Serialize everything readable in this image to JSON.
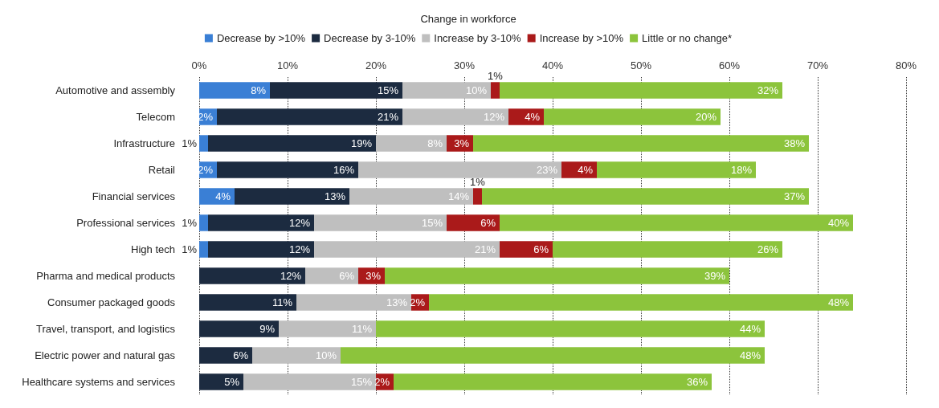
{
  "chart_data": {
    "type": "bar",
    "orientation": "horizontal",
    "stacked": true,
    "title": "Change in workforce",
    "legend": "top",
    "grid": "x",
    "categories": [
      "Automotive and assembly",
      "Telecom",
      "Infrastructure",
      "Retail",
      "Financial services",
      "Professional services",
      "High tech",
      "Pharma and medical products",
      "Consumer packaged goods",
      "Travel, transport, and logistics",
      "Electric power and natural gas",
      "Healthcare systems and services"
    ],
    "xlim": [
      0,
      80
    ],
    "xticks": [
      {
        "value": 0,
        "label": "0%"
      },
      {
        "value": 10,
        "label": "10%"
      },
      {
        "value": 20,
        "label": "20%"
      },
      {
        "value": 30,
        "label": "30%"
      },
      {
        "value": 40,
        "label": "40%"
      },
      {
        "value": 50,
        "label": "50%"
      },
      {
        "value": 60,
        "label": "60%"
      },
      {
        "value": 70,
        "label": "70%"
      },
      {
        "value": 80,
        "label": "80%"
      }
    ],
    "series": [
      {
        "name": "Decrease by >10%",
        "color": "#3a7fd5",
        "values": [
          8,
          2,
          1,
          2,
          4,
          1,
          1,
          null,
          null,
          null,
          null,
          null
        ],
        "value_labels": [
          "8%",
          "2%",
          "1%",
          "2%",
          "4%",
          "1%",
          "1%",
          null,
          null,
          null,
          null,
          null
        ]
      },
      {
        "name": "Decrease by 3-10%",
        "color": "#1c2b40",
        "values": [
          15,
          21,
          19,
          16,
          13,
          12,
          12,
          12,
          11,
          9,
          6,
          5
        ],
        "value_labels": [
          "15%",
          "21%",
          "19%",
          "16%",
          "13%",
          "12%",
          "12%",
          "12%",
          "11%",
          "9%",
          "6%",
          "5%"
        ]
      },
      {
        "name": "Increase by 3-10%",
        "color": "#bfbfbf",
        "values": [
          10,
          12,
          8,
          23,
          14,
          15,
          21,
          6,
          13,
          11,
          10,
          15
        ],
        "value_labels": [
          "10%",
          "12%",
          "8%",
          "23%",
          "14%",
          "15%",
          "21%",
          "6%",
          "13%",
          "11%",
          "10%",
          "15%"
        ]
      },
      {
        "name": "Increase by >10%",
        "color": "#aa1a1a",
        "values": [
          1,
          4,
          3,
          4,
          1,
          6,
          6,
          3,
          2,
          null,
          null,
          2
        ],
        "value_labels": [
          "1%",
          "4%",
          "3%",
          "4%",
          "1%",
          "6%",
          "6%",
          "3%",
          "2%",
          null,
          null,
          "2%"
        ]
      },
      {
        "name": "Little or no change*",
        "color": "#8cc43c",
        "values": [
          32,
          20,
          38,
          18,
          37,
          40,
          26,
          39,
          48,
          44,
          48,
          36
        ],
        "value_labels": [
          "32%",
          "20%",
          "38%",
          "18%",
          "37%",
          "40%",
          "26%",
          "39%",
          "48%",
          "44%",
          "48%",
          "36%"
        ]
      }
    ]
  }
}
